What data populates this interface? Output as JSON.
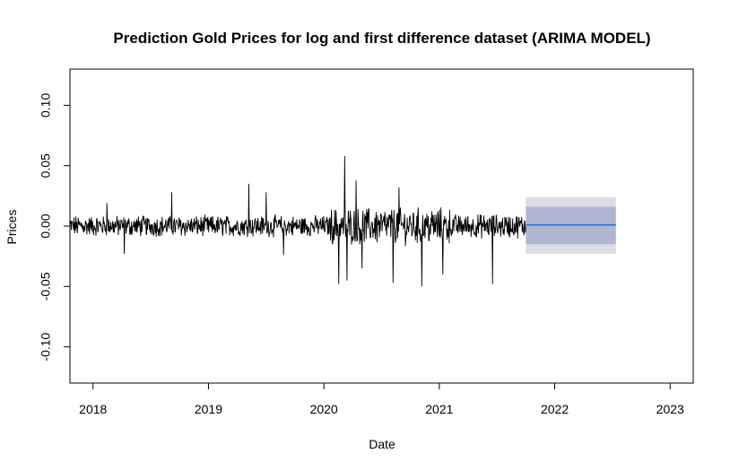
{
  "chart_data": {
    "type": "line",
    "title": "Prediction Gold Prices for log and first difference dataset (ARIMA MODEL)",
    "xlabel": "Date",
    "ylabel": "Prices",
    "xlim": [
      2017.8,
      2023.2
    ],
    "ylim": [
      -0.13,
      0.13
    ],
    "x_ticks": [
      2018,
      2019,
      2020,
      2021,
      2022,
      2023
    ],
    "x_tick_labels": [
      "2018",
      "2019",
      "2020",
      "2021",
      "2022",
      "2023"
    ],
    "y_ticks": [
      -0.1,
      -0.05,
      0.0,
      0.05,
      0.1
    ],
    "y_tick_labels": [
      "-0.10",
      "-0.05",
      "0.00",
      "0.05",
      "0.10"
    ],
    "grid": false,
    "legend": "none",
    "series": [
      {
        "kind": "observed",
        "color": "#000000",
        "x_start": 2017.8,
        "x_end": 2021.75,
        "typical_range": [
          -0.012,
          0.012
        ],
        "spikes": [
          {
            "x": 2018.12,
            "y": 0.019
          },
          {
            "x": 2018.27,
            "y": -0.023
          },
          {
            "x": 2018.68,
            "y": 0.028
          },
          {
            "x": 2019.35,
            "y": 0.035
          },
          {
            "x": 2019.5,
            "y": 0.028
          },
          {
            "x": 2019.65,
            "y": -0.024
          },
          {
            "x": 2020.13,
            "y": -0.048
          },
          {
            "x": 2020.18,
            "y": 0.058
          },
          {
            "x": 2020.2,
            "y": -0.045
          },
          {
            "x": 2020.28,
            "y": 0.038
          },
          {
            "x": 2020.33,
            "y": -0.035
          },
          {
            "x": 2020.6,
            "y": -0.047
          },
          {
            "x": 2020.65,
            "y": 0.032
          },
          {
            "x": 2020.85,
            "y": -0.05
          },
          {
            "x": 2021.03,
            "y": -0.04
          },
          {
            "x": 2021.46,
            "y": -0.048
          }
        ]
      },
      {
        "kind": "forecast",
        "color": "#2a6fdb",
        "x": [
          2021.75,
          2022.53
        ],
        "y": [
          0.001,
          0.001
        ]
      }
    ],
    "bands": [
      {
        "level": "95%",
        "color": "#dcdce4",
        "x": [
          2021.75,
          2022.53
        ],
        "lower": -0.023,
        "upper": 0.024
      },
      {
        "level": "80%",
        "color": "#b0b5d1",
        "x": [
          2021.75,
          2022.53
        ],
        "lower": -0.015,
        "upper": 0.016
      }
    ]
  }
}
